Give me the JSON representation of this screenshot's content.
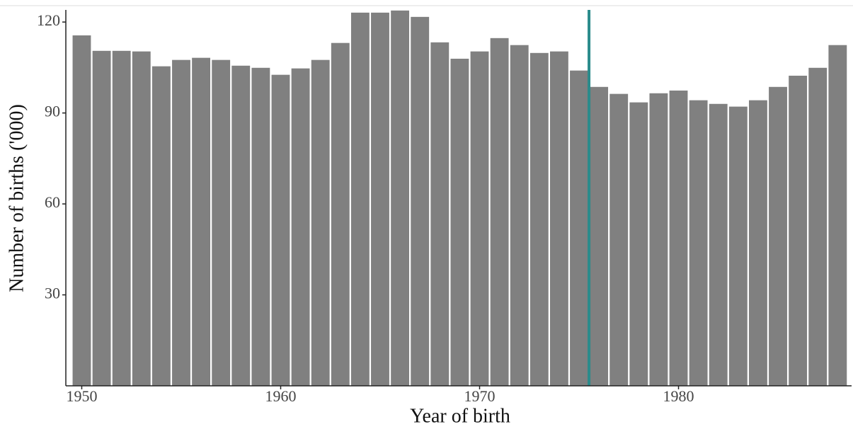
{
  "chart_data": {
    "type": "bar",
    "x_label": "Year of birth",
    "y_label": "Number of births ('000)",
    "x": [
      1950,
      1951,
      1952,
      1953,
      1954,
      1955,
      1956,
      1957,
      1958,
      1959,
      1960,
      1961,
      1962,
      1963,
      1964,
      1965,
      1966,
      1967,
      1968,
      1969,
      1970,
      1971,
      1972,
      1973,
      1974,
      1975,
      1976,
      1977,
      1978,
      1979,
      1980,
      1981,
      1982,
      1983,
      1984,
      1985,
      1986,
      1987,
      1988
    ],
    "values": [
      115.6,
      110.5,
      110.5,
      110.3,
      105.4,
      107.5,
      108.2,
      107.5,
      105.6,
      104.9,
      102.6,
      104.7,
      107.5,
      113.1,
      123.1,
      123.1,
      123.8,
      121.7,
      113.3,
      107.9,
      110.3,
      114.7,
      112.4,
      109.8,
      110.3,
      104.0,
      98.6,
      96.3,
      93.5,
      96.5,
      97.4,
      94.2,
      93.0,
      92.1,
      94.2,
      98.6,
      102.3,
      104.9,
      112.4
    ],
    "color": "#808080",
    "vline": 1975.5,
    "vline_color": "#2a8b8b",
    "xlim": [
      1949.2,
      1988.7
    ],
    "xticks": [
      1950,
      1960,
      1970,
      1980
    ],
    "ylim": [
      0,
      124
    ],
    "yticks": [
      30,
      60,
      90,
      120
    ],
    "grid": false
  }
}
